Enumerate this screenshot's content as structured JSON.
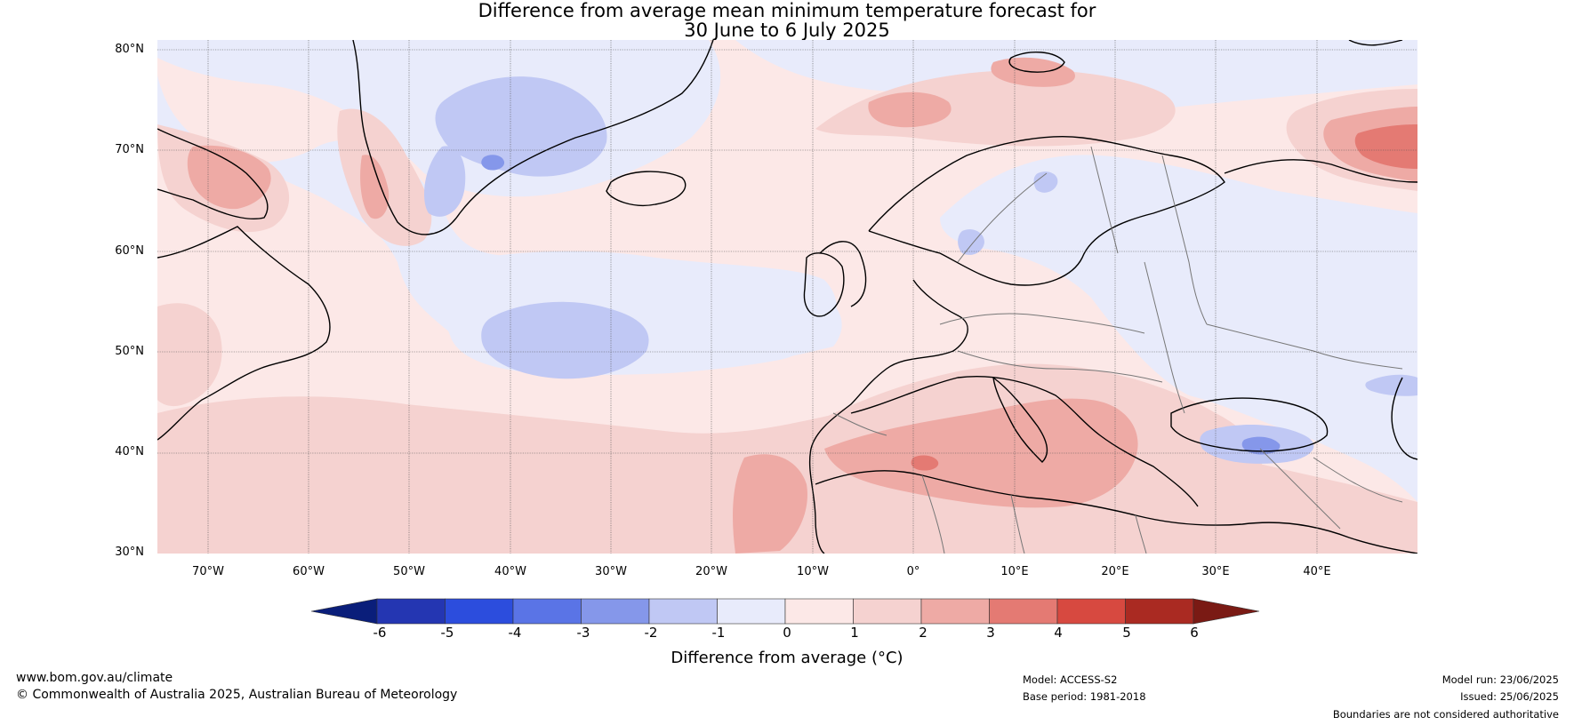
{
  "title": {
    "line1": "Difference from average mean minimum temperature forecast for",
    "line2": "30 June to 6 July 2025"
  },
  "map": {
    "latitude_labels": [
      "80°N",
      "70°N",
      "60°N",
      "50°N",
      "40°N",
      "30°N"
    ],
    "longitude_labels": [
      "70°W",
      "60°W",
      "50°W",
      "40°W",
      "30°W",
      "20°W",
      "10°W",
      "0°",
      "10°E",
      "20°E",
      "30°E",
      "40°E"
    ],
    "lat_range": [
      30,
      81
    ],
    "lon_range": [
      -75,
      50
    ]
  },
  "colorbar": {
    "ticks": [
      "-6",
      "-5",
      "-4",
      "-3",
      "-2",
      "-1",
      "0",
      "1",
      "2",
      "3",
      "4",
      "5",
      "6"
    ],
    "colors": [
      "#0a1e7a",
      "#2436b2",
      "#2c4ddd",
      "#5a74e6",
      "#8597ea",
      "#c0c8f4",
      "#e8ebfb",
      "#fce8e7",
      "#f5d2d0",
      "#eeaaa5",
      "#e47a73",
      "#d74940",
      "#aa2a22",
      "#7a1a14"
    ],
    "label": "Difference from average (°C)"
  },
  "footer": {
    "website": "www.bom.gov.au/climate",
    "copyright": "© Commonwealth of Australia 2025, Australian Bureau of Meteorology",
    "model": "Model: ACCESS-S2",
    "base_period": "Base period: 1981-2018",
    "model_run": "Model run: 23/06/2025",
    "issued": "Issued: 25/06/2025",
    "disclaimer": "Boundaries are not considered authoritative"
  }
}
